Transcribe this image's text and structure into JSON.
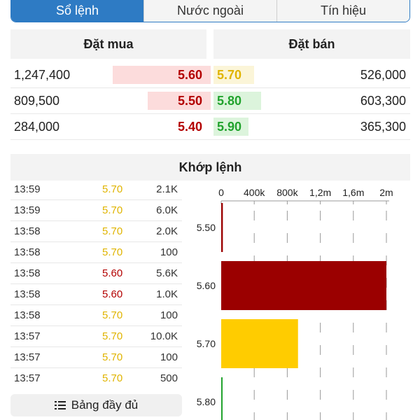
{
  "tabs": [
    {
      "label": "Sổ lệnh",
      "active": true
    },
    {
      "label": "Nước ngoài",
      "active": false
    },
    {
      "label": "Tín hiệu",
      "active": false
    }
  ],
  "orderbook": {
    "bid_title": "Đặt mua",
    "ask_title": "Đặt bán",
    "rows": [
      {
        "bid_volume": "1,247,400",
        "bid_price": "5.60",
        "ask_price": "5.70",
        "ask_volume": "526,000"
      },
      {
        "bid_volume": "809,500",
        "bid_price": "5.50",
        "ask_price": "5.80",
        "ask_volume": "603,300"
      },
      {
        "bid_volume": "284,000",
        "bid_price": "5.40",
        "ask_price": "5.90",
        "ask_volume": "365,300"
      }
    ]
  },
  "colors": {
    "up": "#22a32e",
    "down": "#b30000",
    "reference": "#e0b400",
    "bid_bar": "#fcdcdc",
    "ask_bar_up": "#dcf4dc",
    "ask_bar_ref": "#fbf5d8",
    "tab_active": "#2e7bc4"
  },
  "matched": {
    "title": "Khớp lệnh",
    "trades": [
      {
        "time": "13:59",
        "price": "5.70",
        "volume": "2.1K",
        "color": "#e0b400"
      },
      {
        "time": "13:59",
        "price": "5.70",
        "volume": "6.0K",
        "color": "#e0b400"
      },
      {
        "time": "13:58",
        "price": "5.70",
        "volume": "2.0K",
        "color": "#e0b400"
      },
      {
        "time": "13:58",
        "price": "5.70",
        "volume": "100",
        "color": "#e0b400"
      },
      {
        "time": "13:58",
        "price": "5.60",
        "volume": "5.6K",
        "color": "#b30000"
      },
      {
        "time": "13:58",
        "price": "5.60",
        "volume": "1.0K",
        "color": "#b30000"
      },
      {
        "time": "13:58",
        "price": "5.70",
        "volume": "100",
        "color": "#e0b400"
      },
      {
        "time": "13:57",
        "price": "5.70",
        "volume": "10.0K",
        "color": "#e0b400"
      },
      {
        "time": "13:57",
        "price": "5.70",
        "volume": "100",
        "color": "#e0b400"
      },
      {
        "time": "13:57",
        "price": "5.70",
        "volume": "500",
        "color": "#e0b400"
      }
    ],
    "full_table_label": "Bảng đầy đủ",
    "full_table_icon": "list-icon"
  },
  "chart_data": {
    "type": "bar",
    "orientation": "horizontal",
    "categories": [
      "5.50",
      "5.60",
      "5.70",
      "5.80"
    ],
    "values": [
      20000,
      2000000,
      930000,
      10000
    ],
    "colors": [
      "#9b0000",
      "#9b0000",
      "#ffcc00",
      "#22a32e"
    ],
    "xlim": [
      0,
      2000000
    ],
    "xticks": [
      0,
      400000,
      800000,
      1200000,
      1600000,
      2000000
    ],
    "xtick_labels": [
      "0",
      "400k",
      "800k",
      "1,2m",
      "1,6m",
      "2m"
    ],
    "grid": true
  }
}
